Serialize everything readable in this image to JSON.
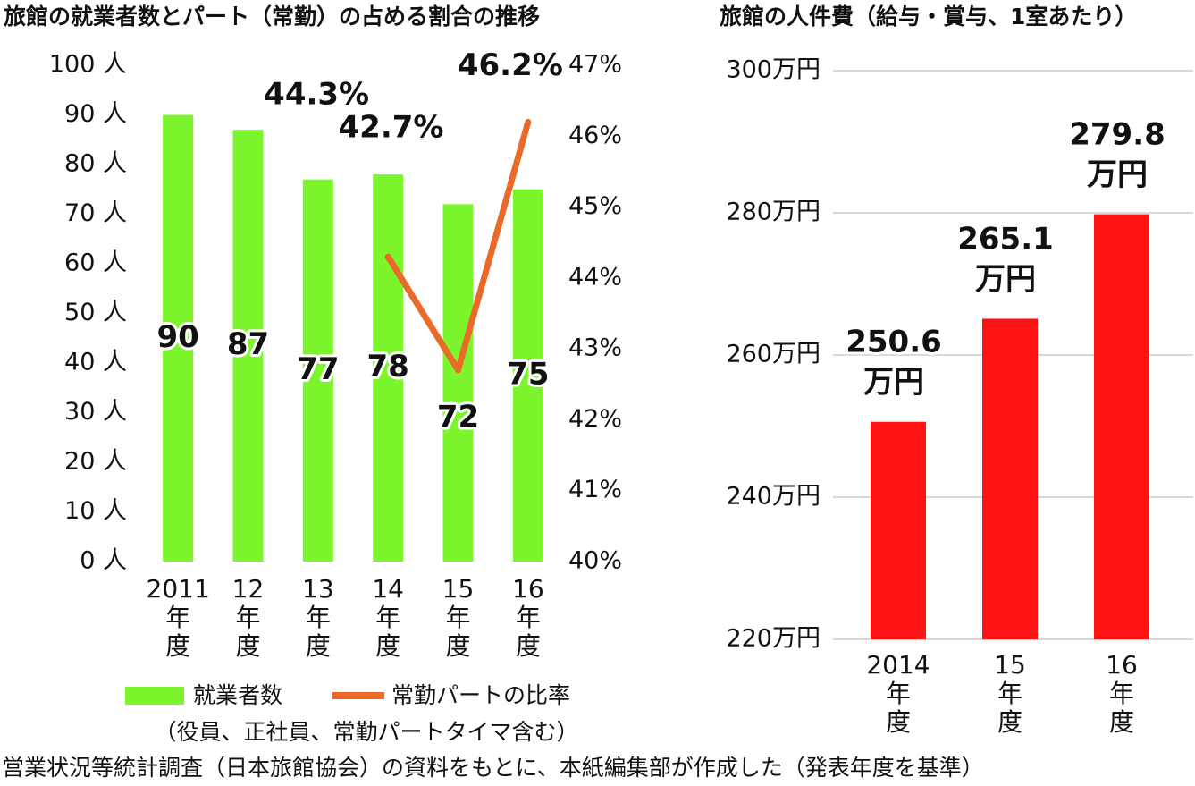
{
  "chart_data": [
    {
      "type": "bar_line",
      "title": "旅館の就業者数とパート（常勤）の占める割合の推移",
      "categories": [
        "2011年度",
        "12年度",
        "13年度",
        "14年度",
        "15年度",
        "16年度"
      ],
      "series": [
        {
          "name": "就業者数",
          "color": "#7cf52c",
          "type": "bar",
          "values": [
            90,
            87,
            77,
            78,
            72,
            75
          ]
        },
        {
          "name": "常勤パートの比率",
          "color": "#ea6a2a",
          "type": "line",
          "axis": "y2",
          "values": [
            null,
            null,
            null,
            44.3,
            42.7,
            46.2
          ],
          "value_labels": [
            null,
            null,
            null,
            "44.3%",
            "42.7%",
            "46.2%"
          ]
        }
      ],
      "ylim": [
        0,
        100
      ],
      "yticks": [
        {
          "value": 0,
          "label": "0 人"
        },
        {
          "value": 10,
          "label": "10 人"
        },
        {
          "value": 20,
          "label": "20 人"
        },
        {
          "value": 30,
          "label": "30 人"
        },
        {
          "value": 40,
          "label": "40 人"
        },
        {
          "value": 50,
          "label": "50 人"
        },
        {
          "value": 60,
          "label": "60 人"
        },
        {
          "value": 70,
          "label": "70 人"
        },
        {
          "value": 80,
          "label": "80 人"
        },
        {
          "value": 90,
          "label": "90 人"
        },
        {
          "value": 100,
          "label": "100 人"
        }
      ],
      "y2lim": [
        40,
        47
      ],
      "y2ticks": [
        {
          "value": 40,
          "label": "40%"
        },
        {
          "value": 41,
          "label": "41%"
        },
        {
          "value": 42,
          "label": "42%"
        },
        {
          "value": 43,
          "label": "43%"
        },
        {
          "value": 44,
          "label": "44%"
        },
        {
          "value": 45,
          "label": "45%"
        },
        {
          "value": 46,
          "label": "46%"
        },
        {
          "value": 47,
          "label": "47%"
        }
      ],
      "note": "（役員、正社員、常勤パートタイマ含む）",
      "grid": false
    },
    {
      "type": "bar",
      "title": "旅館の人件費（給与・賞与、1室あたり）",
      "categories": [
        "2014年度",
        "15年度",
        "16年度"
      ],
      "values": [
        250.6,
        265.1,
        279.8
      ],
      "value_labels": [
        "250.6万円",
        "265.1万円",
        "279.8万円"
      ],
      "color": "#ff1212",
      "ylim": [
        220,
        300
      ],
      "yticks": [
        {
          "value": 220,
          "label": "220万円"
        },
        {
          "value": 240,
          "label": "240万円"
        },
        {
          "value": 260,
          "label": "260万円"
        },
        {
          "value": 280,
          "label": "280万円"
        },
        {
          "value": 300,
          "label": "300万円"
        }
      ],
      "grid": true
    }
  ],
  "source": "営業状況等統計調査（日本旅館協会）の資料をもとに、本紙編集部が作成した（発表年度を基準）"
}
